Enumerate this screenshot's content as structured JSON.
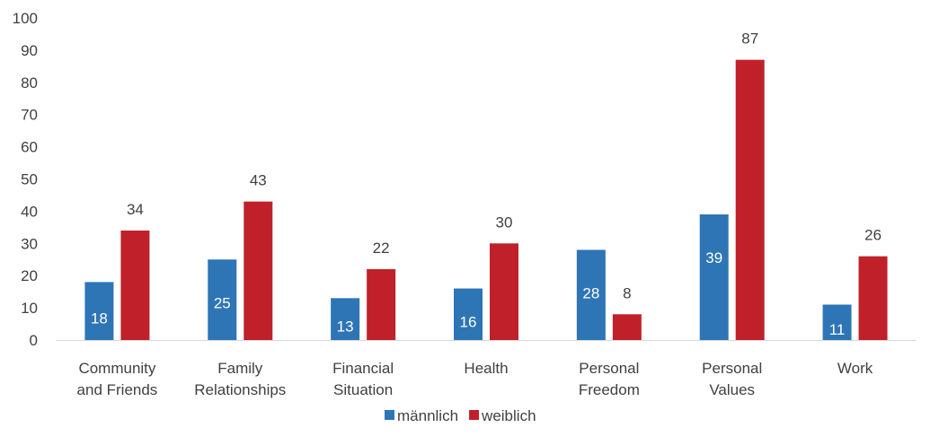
{
  "chart_data": {
    "type": "bar",
    "categories": [
      [
        "Community",
        "and Friends"
      ],
      [
        "Family",
        "Relationships"
      ],
      [
        "Financial",
        "Situation"
      ],
      [
        "Health"
      ],
      [
        "Personal",
        "Freedom"
      ],
      [
        "Personal",
        "Values"
      ],
      [
        "Work"
      ]
    ],
    "series": [
      {
        "name": "männlich",
        "color": "#2E75B6",
        "values": [
          18,
          25,
          13,
          16,
          28,
          39,
          11
        ]
      },
      {
        "name": "weiblich",
        "color": "#C0202A",
        "values": [
          34,
          43,
          22,
          30,
          8,
          87,
          26
        ]
      }
    ],
    "ylim": [
      0,
      100
    ],
    "yticks": [
      0,
      10,
      20,
      30,
      40,
      50,
      60,
      70,
      80,
      90,
      100
    ],
    "grid": false,
    "legend_position": "bottom"
  }
}
